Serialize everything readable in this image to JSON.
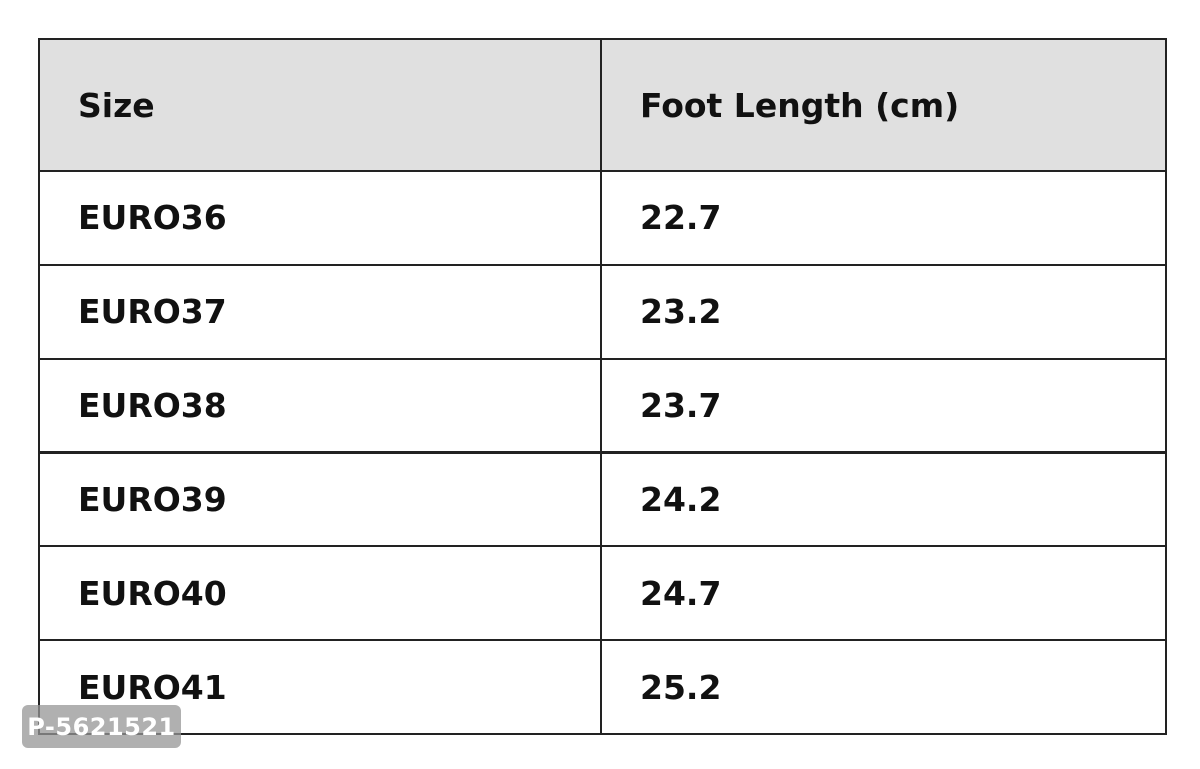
{
  "table": {
    "header": [
      "Size",
      "Foot Length (cm)"
    ],
    "rows": [
      [
        "EURO36",
        "22.7"
      ],
      [
        "EURO37",
        "23.2"
      ],
      [
        "EURO38",
        "23.7"
      ],
      [
        "EURO39",
        "24.2"
      ],
      [
        "EURO40",
        "24.7"
      ],
      [
        "EURO41",
        "25.2"
      ]
    ]
  },
  "watermark": "P-5621521"
}
